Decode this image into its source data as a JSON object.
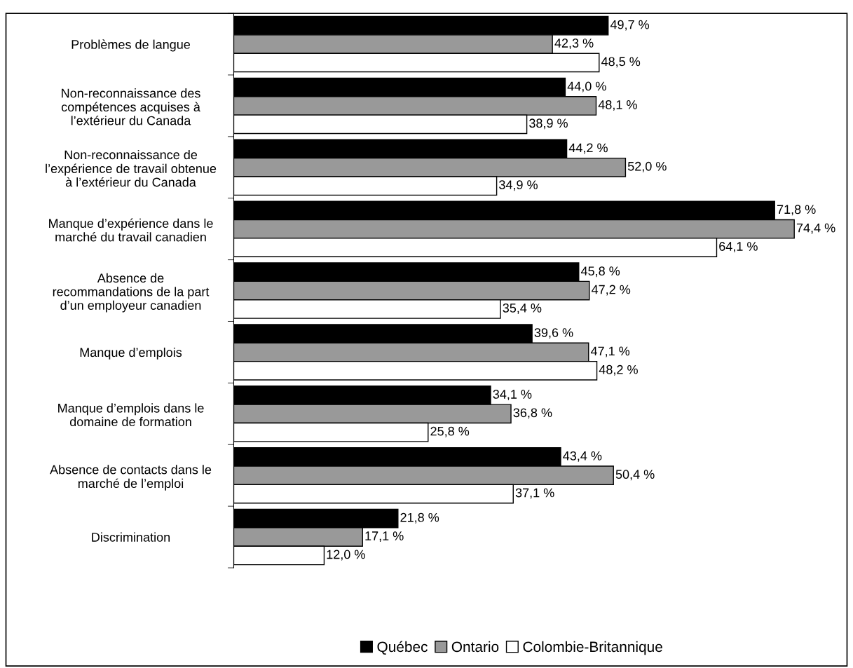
{
  "chart_data": {
    "type": "bar",
    "orientation": "horizontal",
    "legend": "bottom",
    "grid": false,
    "categories": [
      "Problèmes de langue",
      "Non-reconnaissance des\ncompétences acquises à\nl’extérieur du Canada",
      "Non-reconnaissance de\nl’expérience de travail obtenue\nà l’extérieur du Canada",
      "Manque d’expérience dans le\nmarché du travail canadien",
      "Absence de\nrecommandations de la part\nd’un employeur canadien",
      "Manque d’emplois",
      "Manque d’emplois dans le\ndomaine de formation",
      "Absence de contacts dans le\nmarché de l’emploi",
      "Discrimination"
    ],
    "series": [
      {
        "name": "Québec",
        "color": "#000000",
        "values": [
          49.7,
          44.0,
          44.2,
          71.8,
          45.8,
          39.6,
          34.1,
          43.4,
          21.8
        ],
        "value_labels": [
          "49,7 %",
          "44,0 %",
          "44,2 %",
          "71,8 %",
          "45,8 %",
          "39,6 %",
          "34,1 %",
          "43,4 %",
          "21,8 %"
        ]
      },
      {
        "name": "Ontario",
        "color": "#999999",
        "values": [
          42.3,
          48.1,
          52.0,
          74.4,
          47.2,
          47.1,
          36.8,
          50.4,
          17.1
        ],
        "value_labels": [
          "42,3 %",
          "48,1 %",
          "52,0 %",
          "74,4 %",
          "47,2 %",
          "47,1 %",
          "36,8 %",
          "50,4 %",
          "17,1 %"
        ]
      },
      {
        "name": "Colombie-Britannique",
        "color": "#ffffff",
        "values": [
          48.5,
          38.9,
          34.9,
          64.1,
          35.4,
          48.2,
          25.8,
          37.1,
          12.0
        ],
        "value_labels": [
          "48,5 %",
          "38,9 %",
          "34,9 %",
          "64,1 %",
          "35,4 %",
          "48,2 %",
          "25,8 %",
          "37,1 %",
          "12,0 %"
        ]
      }
    ]
  }
}
